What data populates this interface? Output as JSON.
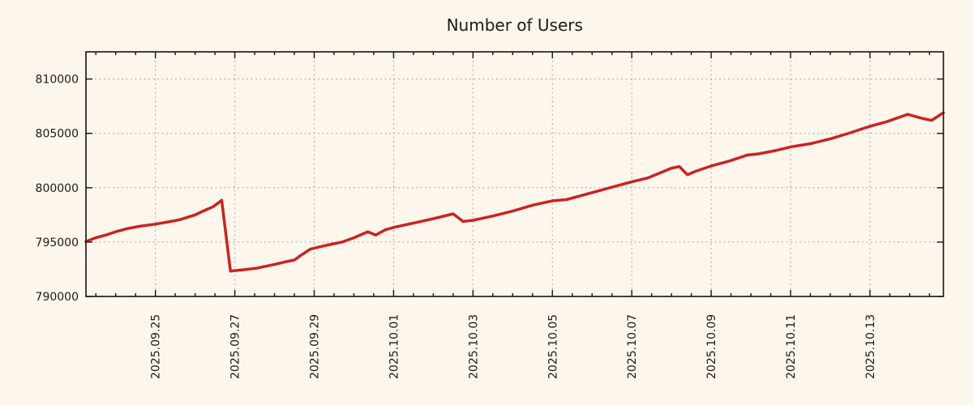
{
  "page": {
    "background": "#fdf6ec"
  },
  "chart_data": {
    "type": "line",
    "title": "Number of Users",
    "background": "#fdf6ec",
    "border_color": "#141414",
    "grid": true,
    "grid_color": "#a8a8a8",
    "text_color": "#1b1b1b",
    "legend": "none",
    "x_axis": {
      "kind": "date",
      "day0": "2025-09-23",
      "xlim_days": [
        0.25,
        21.85
      ],
      "minor_tick_step_days": 0.5,
      "major_ticks": [
        {
          "day": 2,
          "label": "2025.09.25"
        },
        {
          "day": 4,
          "label": "2025.09.27"
        },
        {
          "day": 6,
          "label": "2025.09.29"
        },
        {
          "day": 8,
          "label": "2025.10.01"
        },
        {
          "day": 10,
          "label": "2025.10.03"
        },
        {
          "day": 12,
          "label": "2025.10.05"
        },
        {
          "day": 14,
          "label": "2025.10.07"
        },
        {
          "day": 16,
          "label": "2025.10.09"
        },
        {
          "day": 18,
          "label": "2025.10.11"
        },
        {
          "day": 20,
          "label": "2025.10.13"
        }
      ],
      "label_rotation_deg": -90
    },
    "y_axis": {
      "ylim": [
        790000,
        812500
      ],
      "major_ticks": [
        {
          "value": 790000,
          "label": "790000"
        },
        {
          "value": 795000,
          "label": "795000"
        },
        {
          "value": 800000,
          "label": "800000"
        },
        {
          "value": 805000,
          "label": "805000"
        },
        {
          "value": 810000,
          "label": "810000"
        }
      ]
    },
    "series": [
      {
        "name": "users",
        "color": "#cc2222",
        "line_width": 3.5,
        "points_day_value": [
          [
            0.25,
            795050
          ],
          [
            0.5,
            795400
          ],
          [
            0.75,
            795650
          ],
          [
            1.0,
            795950
          ],
          [
            1.3,
            796250
          ],
          [
            1.6,
            796450
          ],
          [
            2.0,
            796650
          ],
          [
            2.3,
            796850
          ],
          [
            2.6,
            797050
          ],
          [
            3.0,
            797500
          ],
          [
            3.2,
            797850
          ],
          [
            3.45,
            798250
          ],
          [
            3.6,
            798650
          ],
          [
            3.67,
            798850
          ],
          [
            3.89,
            792340
          ],
          [
            4.2,
            792450
          ],
          [
            4.55,
            792600
          ],
          [
            5.0,
            792950
          ],
          [
            5.3,
            793200
          ],
          [
            5.5,
            793350
          ],
          [
            5.65,
            793750
          ],
          [
            5.9,
            794350
          ],
          [
            6.3,
            794700
          ],
          [
            6.7,
            795000
          ],
          [
            7.0,
            795400
          ],
          [
            7.35,
            795950
          ],
          [
            7.55,
            795650
          ],
          [
            7.8,
            796150
          ],
          [
            8.0,
            796350
          ],
          [
            8.5,
            796750
          ],
          [
            9.0,
            797150
          ],
          [
            9.5,
            797600
          ],
          [
            9.75,
            796900
          ],
          [
            10.0,
            797000
          ],
          [
            10.5,
            797400
          ],
          [
            11.0,
            797850
          ],
          [
            11.5,
            798400
          ],
          [
            12.0,
            798800
          ],
          [
            12.35,
            798900
          ],
          [
            13.0,
            799550
          ],
          [
            13.5,
            800050
          ],
          [
            14.0,
            800550
          ],
          [
            14.4,
            800900
          ],
          [
            15.0,
            801800
          ],
          [
            15.2,
            801950
          ],
          [
            15.4,
            801200
          ],
          [
            15.6,
            801500
          ],
          [
            16.0,
            802000
          ],
          [
            16.5,
            802500
          ],
          [
            16.9,
            803000
          ],
          [
            17.2,
            803120
          ],
          [
            17.6,
            803400
          ],
          [
            18.0,
            803750
          ],
          [
            18.5,
            804050
          ],
          [
            19.0,
            804500
          ],
          [
            19.5,
            805050
          ],
          [
            20.0,
            805650
          ],
          [
            20.4,
            806050
          ],
          [
            20.95,
            806750
          ],
          [
            21.3,
            806400
          ],
          [
            21.55,
            806200
          ],
          [
            21.85,
            806900
          ]
        ]
      }
    ]
  }
}
